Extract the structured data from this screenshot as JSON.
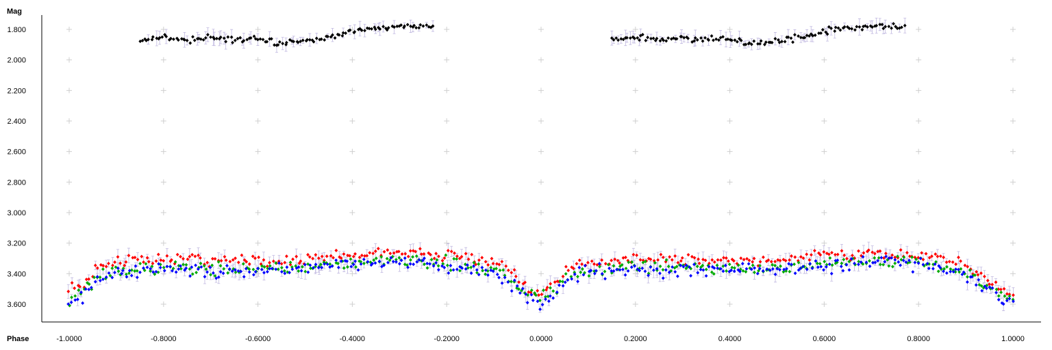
{
  "chart_data": {
    "type": "scatter",
    "xlabel": "Phase",
    "ylabel": "Mag",
    "xlim": [
      -1.0,
      1.0
    ],
    "ylim": [
      1.73,
      3.74
    ],
    "y_inverted": true,
    "grid": "plus-markers",
    "x_ticks": [
      -1.0,
      -0.8,
      -0.6,
      -0.4,
      -0.2,
      0.0,
      0.2,
      0.4,
      0.6,
      0.8,
      1.0
    ],
    "x_tick_labels": [
      "-1.0000",
      "-0.8000",
      "-0.6000",
      "-0.4000",
      "-0.2000",
      "0.0000",
      "0.2000",
      "0.4000",
      "0.6000",
      "0.8000",
      "1.0000"
    ],
    "y_ticks": [
      1.8,
      2.0,
      2.2,
      2.4,
      2.6,
      2.8,
      3.0,
      3.2,
      3.4,
      3.6
    ],
    "y_tick_labels": [
      "1.800",
      "2.000",
      "2.200",
      "2.400",
      "2.600",
      "2.800",
      "3.000",
      "3.200",
      "3.400",
      "3.600"
    ],
    "error_bar_color": "#c0b8e0",
    "series": [
      {
        "color": "#000000",
        "x_ranges": [
          [
            -0.85,
            -0.23
          ],
          [
            0.15,
            0.77
          ]
        ],
        "x": [
          -0.85,
          -0.8,
          -0.75,
          -0.7,
          -0.65,
          -0.6,
          -0.55,
          -0.5,
          -0.45,
          -0.4,
          -0.35,
          -0.3,
          -0.25,
          -0.23
        ],
        "values": [
          1.87,
          1.855,
          1.87,
          1.855,
          1.865,
          1.865,
          1.895,
          1.875,
          1.855,
          1.815,
          1.79,
          1.78,
          1.775,
          1.775
        ],
        "scatter": 0.012
      },
      {
        "color": "#ff0000",
        "x": [
          -1.0,
          -0.97,
          -0.95,
          -0.93,
          -0.9,
          -0.85,
          -0.8,
          -0.75,
          -0.7,
          -0.6,
          -0.5,
          -0.4,
          -0.35,
          -0.3,
          -0.25,
          -0.2,
          -0.15,
          -0.1,
          -0.07,
          -0.05,
          -0.03,
          -0.01,
          0.0,
          0.02,
          0.04,
          0.06,
          0.08,
          0.1,
          0.15,
          0.2,
          0.3,
          0.4,
          0.5,
          0.6,
          0.65,
          0.7,
          0.75,
          0.8,
          0.85,
          0.9,
          0.93,
          0.95,
          0.97,
          0.99
        ],
        "values": [
          3.5,
          3.46,
          3.4,
          3.35,
          3.33,
          3.31,
          3.3,
          3.3,
          3.31,
          3.32,
          3.31,
          3.28,
          3.27,
          3.26,
          3.27,
          3.28,
          3.3,
          3.32,
          3.36,
          3.42,
          3.48,
          3.52,
          3.52,
          3.48,
          3.42,
          3.36,
          3.33,
          3.32,
          3.31,
          3.3,
          3.3,
          3.32,
          3.3,
          3.28,
          3.28,
          3.26,
          3.27,
          3.28,
          3.3,
          3.34,
          3.4,
          3.46,
          3.5,
          3.53
        ],
        "scatter": 0.022
      },
      {
        "color": "#00aa00",
        "x": [
          -1.0,
          -0.97,
          -0.95,
          -0.93,
          -0.9,
          -0.85,
          -0.8,
          -0.75,
          -0.7,
          -0.6,
          -0.5,
          -0.4,
          -0.35,
          -0.3,
          -0.25,
          -0.2,
          -0.15,
          -0.1,
          -0.07,
          -0.05,
          -0.03,
          -0.01,
          0.0,
          0.02,
          0.04,
          0.06,
          0.08,
          0.1,
          0.15,
          0.2,
          0.3,
          0.4,
          0.5,
          0.6,
          0.65,
          0.7,
          0.75,
          0.8,
          0.85,
          0.9,
          0.93,
          0.95,
          0.97,
          0.99
        ],
        "values": [
          3.57,
          3.53,
          3.45,
          3.4,
          3.38,
          3.37,
          3.36,
          3.36,
          3.37,
          3.37,
          3.36,
          3.33,
          3.32,
          3.31,
          3.32,
          3.33,
          3.35,
          3.38,
          3.42,
          3.48,
          3.53,
          3.56,
          3.56,
          3.53,
          3.48,
          3.42,
          3.39,
          3.38,
          3.37,
          3.36,
          3.36,
          3.37,
          3.36,
          3.34,
          3.33,
          3.32,
          3.32,
          3.33,
          3.35,
          3.39,
          3.45,
          3.5,
          3.54,
          3.56
        ],
        "scatter": 0.025
      },
      {
        "color": "#0000ff",
        "x": [
          -1.0,
          -0.97,
          -0.95,
          -0.93,
          -0.9,
          -0.85,
          -0.8,
          -0.75,
          -0.7,
          -0.6,
          -0.5,
          -0.4,
          -0.35,
          -0.3,
          -0.25,
          -0.2,
          -0.15,
          -0.1,
          -0.07,
          -0.05,
          -0.03,
          -0.01,
          0.0,
          0.02,
          0.04,
          0.06,
          0.08,
          0.1,
          0.15,
          0.2,
          0.3,
          0.4,
          0.5,
          0.6,
          0.65,
          0.7,
          0.75,
          0.8,
          0.85,
          0.9,
          0.93,
          0.95,
          0.97,
          0.99
        ],
        "values": [
          3.59,
          3.55,
          3.47,
          3.42,
          3.4,
          3.38,
          3.38,
          3.37,
          3.38,
          3.38,
          3.37,
          3.34,
          3.33,
          3.32,
          3.33,
          3.34,
          3.36,
          3.39,
          3.44,
          3.5,
          3.56,
          3.59,
          3.59,
          3.56,
          3.5,
          3.44,
          3.41,
          3.39,
          3.38,
          3.38,
          3.37,
          3.38,
          3.37,
          3.35,
          3.34,
          3.33,
          3.33,
          3.34,
          3.36,
          3.4,
          3.46,
          3.52,
          3.56,
          3.6
        ],
        "scatter": 0.028
      }
    ]
  }
}
